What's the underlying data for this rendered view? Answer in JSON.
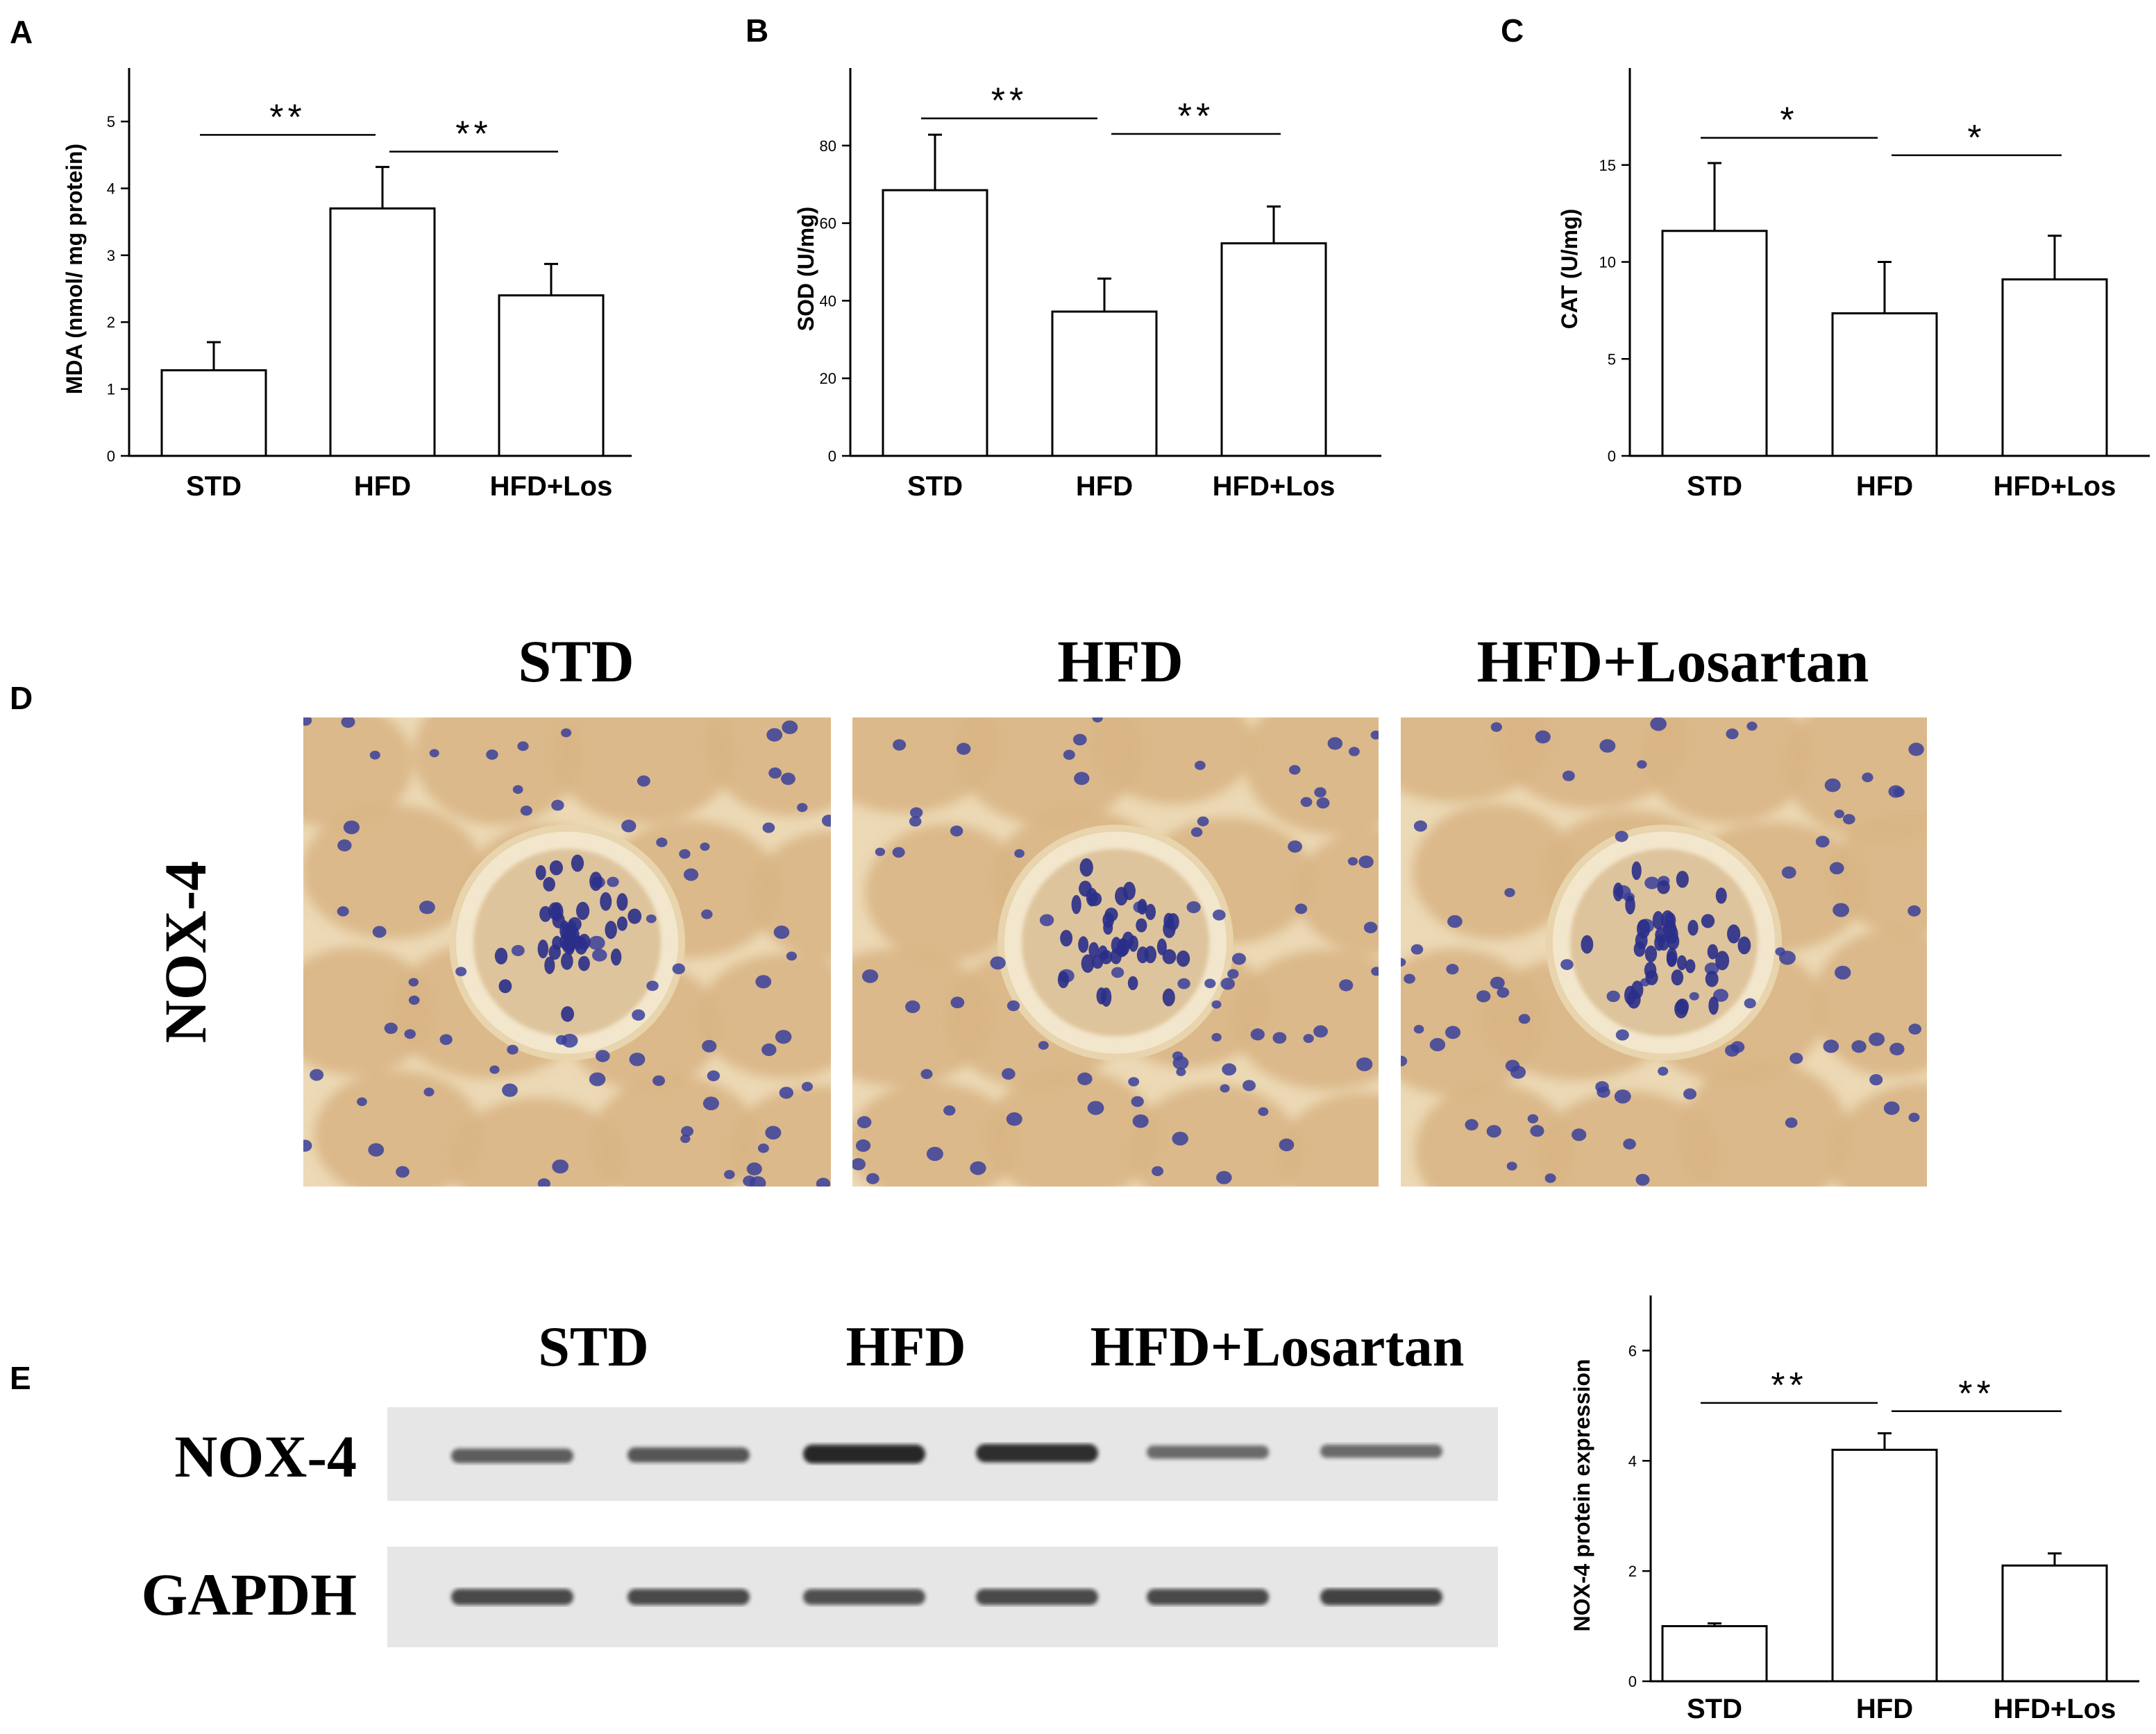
{
  "panels": {
    "A": "A",
    "B": "B",
    "C": "C",
    "D": "D",
    "E": "E"
  },
  "chart_data": [
    {
      "id": "A",
      "type": "bar",
      "categories": [
        "STD",
        "HFD",
        "HFD+Los"
      ],
      "values": [
        1.28,
        3.7,
        2.4
      ],
      "errors": [
        0.42,
        0.62,
        0.47
      ],
      "ylabel": "MDA (nmol/ mg protein)",
      "ylim": [
        0,
        5.8
      ],
      "yticks": [
        0,
        1,
        2,
        3,
        4,
        5
      ],
      "significance": [
        {
          "from": 0,
          "to": 1,
          "label": "**",
          "y": 4.8
        },
        {
          "from": 1,
          "to": 2,
          "label": "**",
          "y": 4.55
        }
      ]
    },
    {
      "id": "B",
      "type": "bar",
      "categories": [
        "STD",
        "HFD",
        "HFD+Los"
      ],
      "values": [
        68.5,
        37.2,
        54.8
      ],
      "errors": [
        14.3,
        8.5,
        9.5
      ],
      "ylabel": "SOD (U/mg)",
      "ylim": [
        0,
        100
      ],
      "yticks": [
        0,
        20,
        40,
        60,
        80
      ],
      "significance": [
        {
          "from": 0,
          "to": 1,
          "label": "**",
          "y": 87
        },
        {
          "from": 1,
          "to": 2,
          "label": "**",
          "y": 83
        }
      ]
    },
    {
      "id": "C",
      "type": "bar",
      "categories": [
        "STD",
        "HFD",
        "HFD+Los"
      ],
      "values": [
        11.6,
        7.35,
        9.1
      ],
      "errors": [
        3.5,
        2.65,
        2.25
      ],
      "ylabel": "CAT (U/mg)",
      "ylim": [
        0,
        20
      ],
      "yticks": [
        0,
        5,
        10,
        15
      ],
      "significance": [
        {
          "from": 0,
          "to": 1,
          "label": "*",
          "y": 16.4
        },
        {
          "from": 1,
          "to": 2,
          "label": "*",
          "y": 15.5
        }
      ]
    },
    {
      "id": "E",
      "type": "bar",
      "categories": [
        "STD",
        "HFD",
        "HFD+Los"
      ],
      "values": [
        1.0,
        4.2,
        2.1
      ],
      "errors": [
        0.05,
        0.3,
        0.22
      ],
      "ylabel": "NOX-4 protein expression",
      "ylim": [
        0,
        7
      ],
      "yticks": [
        0,
        2,
        4,
        6
      ],
      "significance": [
        {
          "from": 0,
          "to": 1,
          "label": "**",
          "y": 5.05
        },
        {
          "from": 1,
          "to": 2,
          "label": "**",
          "y": 4.9
        }
      ]
    }
  ],
  "histology": {
    "row_label": "NOX-4",
    "titles": [
      "STD",
      "HFD",
      "HFD+Losartan"
    ]
  },
  "western": {
    "group_labels": [
      "STD",
      "HFD",
      "HFD+Losartan"
    ],
    "bands": [
      {
        "label": "NOX-4",
        "intensities": [
          0.55,
          0.6,
          0.95,
          0.9,
          0.45,
          0.45
        ]
      },
      {
        "label": "GAPDH",
        "intensities": [
          0.7,
          0.7,
          0.65,
          0.7,
          0.7,
          0.75
        ]
      }
    ]
  },
  "colors": {
    "axis": "#000000",
    "bar_fill": "#ffffff",
    "tissue_bg": "#d9b585",
    "tissue_light": "#ecd9b5",
    "nucleus": "#3a3f9a",
    "blot_bg": "#e6e6e6",
    "band": "#1a1a1a"
  }
}
